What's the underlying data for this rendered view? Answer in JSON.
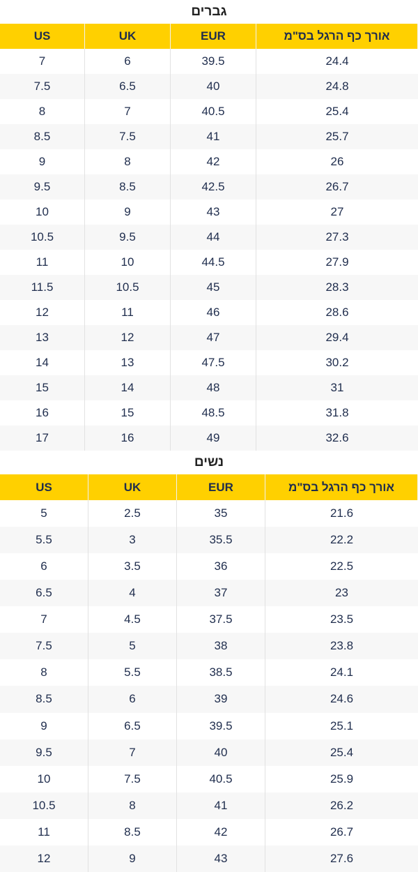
{
  "tables": [
    {
      "title": "גברים",
      "header": [
        "US",
        "UK",
        "EUR",
        "אורך כף הרגל בס\"מ"
      ],
      "rows": [
        [
          "7",
          "6",
          "39.5",
          "24.4"
        ],
        [
          "7.5",
          "6.5",
          "40",
          "24.8"
        ],
        [
          "8",
          "7",
          "40.5",
          "25.4"
        ],
        [
          "8.5",
          "7.5",
          "41",
          "25.7"
        ],
        [
          "9",
          "8",
          "42",
          "26"
        ],
        [
          "9.5",
          "8.5",
          "42.5",
          "26.7"
        ],
        [
          "10",
          "9",
          "43",
          "27"
        ],
        [
          "10.5",
          "9.5",
          "44",
          "27.3"
        ],
        [
          "11",
          "10",
          "44.5",
          "27.9"
        ],
        [
          "11.5",
          "10.5",
          "45",
          "28.3"
        ],
        [
          "12",
          "11",
          "46",
          "28.6"
        ],
        [
          "13",
          "12",
          "47",
          "29.4"
        ],
        [
          "14",
          "13",
          "47.5",
          "30.2"
        ],
        [
          "15",
          "14",
          "48",
          "31"
        ],
        [
          "16",
          "15",
          "48.5",
          "31.8"
        ],
        [
          "17",
          "16",
          "49",
          "32.6"
        ]
      ]
    },
    {
      "title": "נשים",
      "header": [
        "US",
        "UK",
        "EUR",
        "אורך כף הרגל בס\"מ"
      ],
      "rows": [
        [
          "5",
          "2.5",
          "35",
          "21.6"
        ],
        [
          "5.5",
          "3",
          "35.5",
          "22.2"
        ],
        [
          "6",
          "3.5",
          "36",
          "22.5"
        ],
        [
          "6.5",
          "4",
          "37",
          "23"
        ],
        [
          "7",
          "4.5",
          "37.5",
          "23.5"
        ],
        [
          "7.5",
          "5",
          "38",
          "23.8"
        ],
        [
          "8",
          "5.5",
          "38.5",
          "24.1"
        ],
        [
          "8.5",
          "6",
          "39",
          "24.6"
        ],
        [
          "9",
          "6.5",
          "39.5",
          "25.1"
        ],
        [
          "9.5",
          "7",
          "40",
          "25.4"
        ],
        [
          "10",
          "7.5",
          "40.5",
          "25.9"
        ],
        [
          "10.5",
          "8",
          "41",
          "26.2"
        ],
        [
          "11",
          "8.5",
          "42",
          "26.7"
        ],
        [
          "12",
          "9",
          "43",
          "27.6"
        ]
      ]
    }
  ]
}
